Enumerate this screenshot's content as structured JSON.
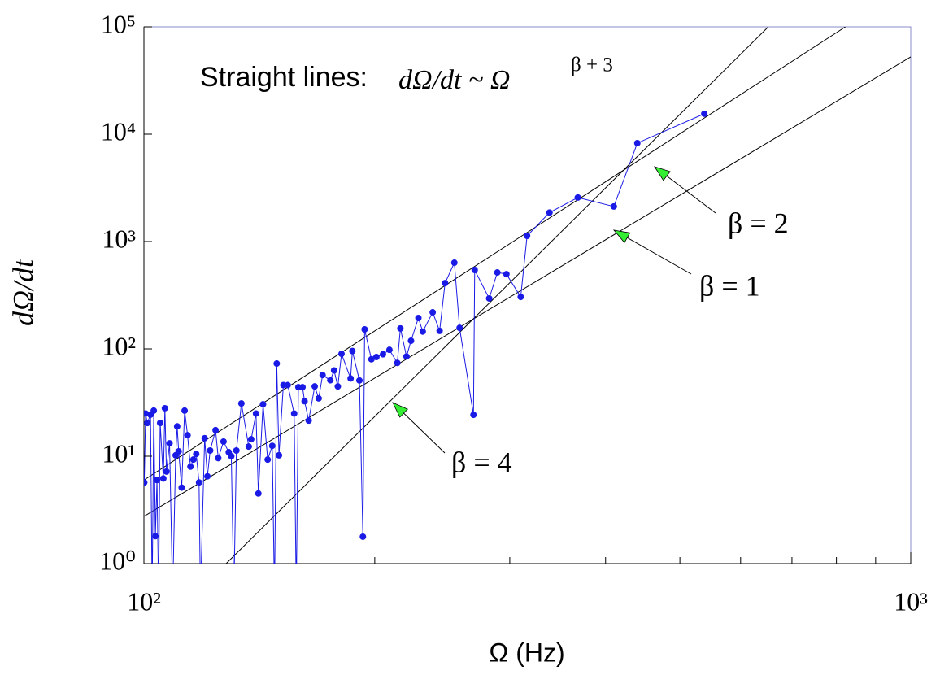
{
  "chart_data": {
    "type": "line",
    "annotation": {
      "text": "Straight lines:",
      "formula": "dΩ/dt ~ Ω",
      "exponent": "β + 3"
    },
    "x_label": "Ω (Hz)",
    "y_label": "dΩ/dt",
    "x_scale": "log",
    "y_scale": "log",
    "xlim": [
      100,
      1000
    ],
    "ylim": [
      1,
      100000
    ],
    "xticks": [
      {
        "value": 100,
        "label": "10²"
      },
      {
        "value": 1000,
        "label": "10³"
      }
    ],
    "xminor_ticks": [
      200,
      300,
      400,
      500,
      600,
      700,
      800,
      900
    ],
    "yticks": [
      {
        "value": 1,
        "label": "10⁰"
      },
      {
        "value": 10,
        "label": "10¹"
      },
      {
        "value": 100,
        "label": "10²"
      },
      {
        "value": 1000,
        "label": "10³"
      },
      {
        "value": 10000,
        "label": "10⁴"
      },
      {
        "value": 100000,
        "label": "10⁵"
      }
    ],
    "series": [
      {
        "color": "#1a1ae6",
        "x": [
          100.1,
          100.5,
          101,
          102,
          102.5,
          103,
          103.5,
          104,
          104.5,
          105,
          106,
          106.5,
          107,
          108,
          109,
          110,
          110.5,
          111,
          112,
          113,
          114,
          115,
          116,
          117,
          118,
          118.5,
          120,
          121,
          122,
          124,
          125,
          127,
          129,
          130,
          131,
          132,
          134,
          137,
          138,
          140,
          141,
          143,
          145,
          147,
          148,
          149,
          150,
          152,
          154,
          157,
          158,
          159,
          161,
          162,
          164,
          167,
          169,
          171,
          175,
          177,
          179,
          181,
          186,
          187,
          191,
          193,
          194,
          198,
          201,
          205,
          209,
          214,
          216,
          220,
          223,
          228,
          231,
          238,
          243,
          247,
          254,
          258,
          269,
          270,
          282,
          289,
          297,
          310,
          316,
          338,
          368,
          410,
          440,
          538
        ],
        "values": [
          5.7,
          25,
          20.4,
          24.4,
          0.5,
          26.6,
          1.8,
          6,
          0.5,
          20.4,
          6.2,
          28,
          7.2,
          13.2,
          0.5,
          10.2,
          19,
          11.1,
          5.1,
          26.6,
          15.7,
          8,
          9.3,
          10.5,
          5.7,
          0.5,
          14.7,
          6.5,
          11.3,
          17.5,
          9.6,
          13.7,
          10.9,
          10,
          0.5,
          11.3,
          31,
          12.3,
          14.4,
          25,
          4.5,
          30.5,
          9.3,
          12.5,
          0.5,
          73,
          10.2,
          46,
          46,
          25,
          0.5,
          44,
          44,
          32.5,
          21.5,
          44.7,
          34.6,
          57,
          51,
          63,
          44.7,
          90,
          53,
          95.5,
          50.8,
          1.78,
          152,
          80,
          84,
          89,
          98,
          74,
          155,
          85,
          119,
          194,
          145,
          219,
          147,
          410,
          635,
          157,
          24.3,
          543,
          295,
          515,
          497,
          305,
          1130,
          1860,
          2570,
          2120,
          8260,
          15500
        ]
      }
    ],
    "fit_lines": [
      {
        "label": "β = 2",
        "x": [
          100,
          822
        ],
        "values": [
          6,
          100000
        ]
      },
      {
        "label": "β = 1",
        "x": [
          100,
          1000
        ],
        "values": [
          2.75,
          52500
        ]
      },
      {
        "label": "β = 4",
        "x": [
          128,
          652
        ],
        "values": [
          1,
          100000
        ]
      }
    ]
  }
}
